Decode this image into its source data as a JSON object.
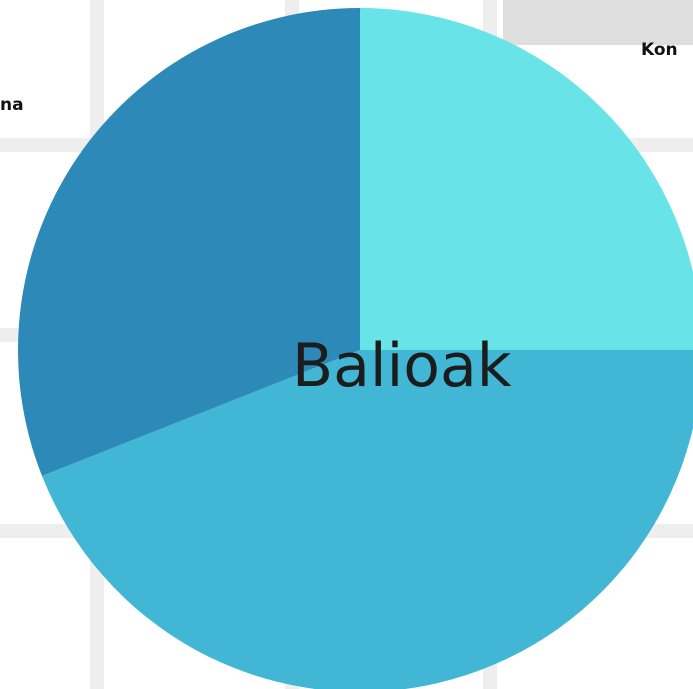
{
  "chart_data": {
    "type": "pie",
    "title": "",
    "slices": [
      {
        "value": 25,
        "color": "#68E4E8"
      },
      {
        "value": 44,
        "color": "#42B6D5"
      },
      {
        "value": 31,
        "color": "#2D89B7"
      }
    ],
    "center_label": "Balioak",
    "outside_labels": {
      "left": "na",
      "right": "Kon"
    }
  }
}
